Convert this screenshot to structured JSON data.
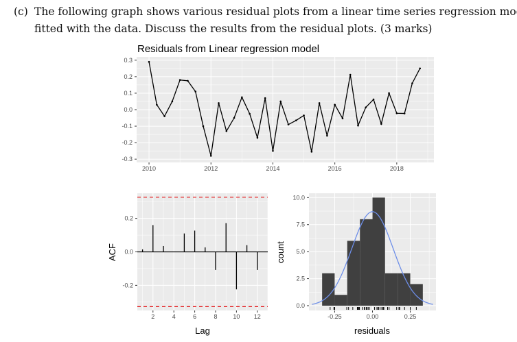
{
  "question": {
    "label": "(c)",
    "line1": "The following graph shows various residual plots from a linear time series regression model",
    "line2": "fitted with the data. Discuss the results from the residual plots. (3 marks)"
  },
  "chart_data": [
    {
      "type": "line",
      "title": "Residuals from Linear regression model",
      "xlabel": "",
      "ylabel": "",
      "xlim": [
        2009.6,
        2019.2
      ],
      "ylim": [
        -0.32,
        0.32
      ],
      "x_ticks": [
        "2010",
        "2012",
        "2014",
        "2016",
        "2018"
      ],
      "y_ticks": [
        "0.3",
        "0.2",
        "0.1",
        "0.0",
        "-0.1",
        "-0.2",
        "-0.3"
      ],
      "x_start": 2010,
      "frequency": "quarterly",
      "values": [
        0.29,
        0.03,
        -0.04,
        0.05,
        0.18,
        0.175,
        0.11,
        -0.1,
        -0.28,
        0.04,
        -0.13,
        -0.05,
        0.075,
        -0.025,
        -0.17,
        0.07,
        -0.25,
        0.05,
        -0.09,
        -0.065,
        -0.035,
        -0.255,
        0.04,
        -0.158,
        0.03,
        -0.053,
        0.212,
        -0.096,
        0.014,
        0.062,
        -0.086,
        0.1,
        -0.022,
        -0.023,
        0.16,
        0.25
      ],
      "line_color": "#000000",
      "grid": true
    },
    {
      "type": "bar",
      "subtype": "acf",
      "xlabel": "Lag",
      "ylabel": "ACF",
      "xlim": [
        0.5,
        13
      ],
      "ylim": [
        -0.35,
        0.35
      ],
      "x_ticks": [
        "2",
        "4",
        "6",
        "8",
        "10",
        "12"
      ],
      "y_ticks": [
        "0.2",
        "0.0",
        "-0.2"
      ],
      "lags": [
        1,
        2,
        3,
        4,
        5,
        6,
        7,
        8,
        9,
        10,
        11,
        12
      ],
      "values": [
        0.015,
        0.16,
        0.035,
        0.0,
        0.11,
        0.127,
        0.027,
        -0.108,
        0.172,
        -0.224,
        0.04,
        -0.108
      ],
      "confidence_bound": 0.327,
      "bound_color": "#e41a1c",
      "grid": true
    },
    {
      "type": "bar",
      "subtype": "histogram",
      "xlabel": "residuals",
      "ylabel": "count",
      "xlim": [
        -0.42,
        0.42
      ],
      "ylim": [
        0,
        10.4
      ],
      "x_ticks": [
        "-0.25",
        "0.00",
        "0.25"
      ],
      "y_ticks": [
        "10.0",
        "7.5",
        "5.0",
        "2.5",
        "0.0"
      ],
      "bin_edges": [
        -0.333,
        -0.25,
        -0.167,
        -0.083,
        0,
        0.083,
        0.167,
        0.25,
        0.333
      ],
      "counts": [
        3,
        1,
        6,
        8,
        10,
        3,
        3,
        2
      ],
      "density_curve": {
        "mean": 0,
        "peak": 8.7,
        "sd": 0.137,
        "color": "#6d8ee8"
      },
      "bar_color": "#404040",
      "rug": true,
      "grid": true
    }
  ]
}
